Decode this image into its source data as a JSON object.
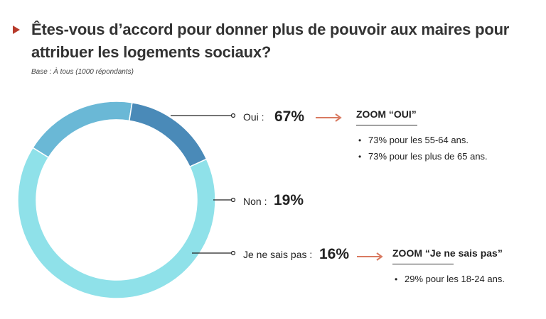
{
  "title": "Êtes-vous d’accord pour donner plus de pouvoir aux maires pour attribuer les logements sociaux?",
  "base": "Base : À tous (1000 répondants)",
  "chart_data": {
    "type": "pie",
    "subtype": "donut",
    "categories": [
      "Oui",
      "Non",
      "Je ne sais pas"
    ],
    "values": [
      67,
      19,
      16
    ],
    "labels": [
      "Oui :",
      "Non :",
      "Je ne sais pas :"
    ],
    "value_labels": [
      "67%",
      "19%",
      "16%"
    ],
    "colors": [
      "#8fe1e9",
      "#6ab8d6",
      "#4a8ab8"
    ]
  },
  "zoom_oui": {
    "heading": "ZOOM “OUI”",
    "items": [
      "73% pour les 55-64 ans.",
      "73% pour les plus de 65 ans."
    ]
  },
  "zoom_nsp": {
    "heading": "ZOOM “Je ne sais pas”",
    "items": [
      "29% pour les 18-24 ans."
    ]
  },
  "accent_color": "#d97a61"
}
